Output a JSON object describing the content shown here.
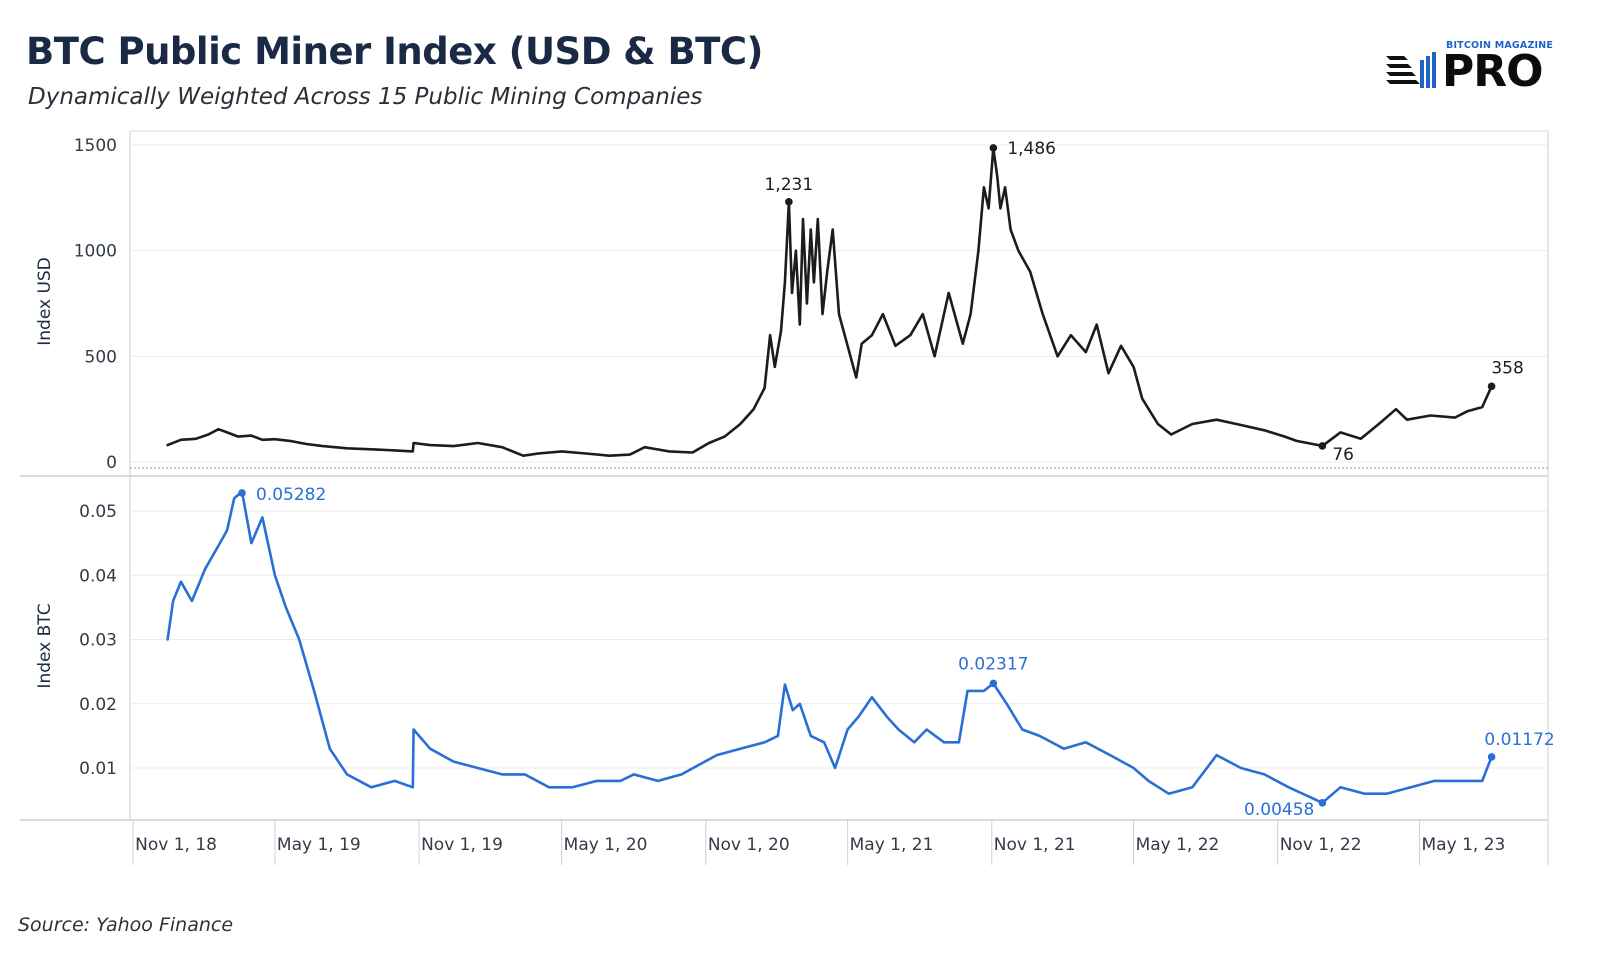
{
  "title": "BTC Public Miner Index (USD & BTC)",
  "subtitle": "Dynamically Weighted Across 15 Public Mining Companies",
  "source": "Source: Yahoo Finance",
  "brand": {
    "top": "BITCOIN MAGAZINE",
    "main": "PRO"
  },
  "colors": {
    "usd_line": "#1c1c1c",
    "btc_line": "#2a6fd6",
    "grid": "#ebebeb",
    "title": "#1b2a44"
  },
  "chart_data": [
    {
      "type": "line",
      "ylabel": "Index USD",
      "ylim": [
        0,
        1500
      ],
      "yticks": [
        0,
        500,
        1000,
        1500
      ],
      "xlim": [
        "2018-10-28",
        "2023-10-12"
      ],
      "xticks": [
        "2018-11-01",
        "2019-05-01",
        "2019-11-01",
        "2020-05-01",
        "2020-11-01",
        "2021-05-01",
        "2021-11-01",
        "2022-05-01",
        "2022-11-01",
        "2023-05-01"
      ],
      "xticklabels": [
        "Nov 1, 18",
        "May 1, 19",
        "Nov 1, 19",
        "May 1, 20",
        "Nov 1, 20",
        "May 1, 21",
        "Nov 1, 21",
        "May 1, 22",
        "Nov 1, 22",
        "May 1, 23"
      ],
      "grid": true,
      "series": [
        {
          "x": [
            "2018-12-15",
            "2019-01-01",
            "2019-01-20",
            "2019-02-05",
            "2019-02-18",
            "2019-03-01",
            "2019-03-15",
            "2019-04-01",
            "2019-04-15",
            "2019-05-01",
            "2019-05-20",
            "2019-06-10",
            "2019-07-01",
            "2019-08-01",
            "2019-09-01",
            "2019-10-01",
            "2019-10-24",
            "2019-10-25",
            "2019-11-15",
            "2019-12-15",
            "2020-01-15",
            "2020-02-15",
            "2020-03-13",
            "2020-04-01",
            "2020-05-01",
            "2020-06-01",
            "2020-07-01",
            "2020-07-27",
            "2020-08-15",
            "2020-09-15",
            "2020-10-15",
            "2020-11-05",
            "2020-11-25",
            "2020-12-15",
            "2021-01-01",
            "2021-01-15",
            "2021-01-22",
            "2021-01-28",
            "2021-02-05",
            "2021-02-10",
            "2021-02-15",
            "2021-02-19",
            "2021-02-24",
            "2021-03-01",
            "2021-03-05",
            "2021-03-10",
            "2021-03-15",
            "2021-03-19",
            "2021-03-24",
            "2021-03-30",
            "2021-04-05",
            "2021-04-12",
            "2021-04-20",
            "2021-05-01",
            "2021-05-12",
            "2021-05-19",
            "2021-06-01",
            "2021-06-15",
            "2021-07-01",
            "2021-07-20",
            "2021-08-05",
            "2021-08-20",
            "2021-09-07",
            "2021-09-25",
            "2021-10-05",
            "2021-10-15",
            "2021-10-22",
            "2021-10-28",
            "2021-11-03",
            "2021-11-08",
            "2021-11-12",
            "2021-11-18",
            "2021-11-25",
            "2021-12-05",
            "2021-12-20",
            "2022-01-05",
            "2022-01-24",
            "2022-02-10",
            "2022-03-01",
            "2022-03-15",
            "2022-03-30",
            "2022-04-15",
            "2022-05-01",
            "2022-05-12",
            "2022-06-01",
            "2022-06-18",
            "2022-07-15",
            "2022-08-15",
            "2022-09-15",
            "2022-10-15",
            "2022-11-10",
            "2022-11-25",
            "2022-12-28",
            "2023-01-20",
            "2023-02-15",
            "2023-03-10",
            "2023-04-01",
            "2023-04-15",
            "2023-05-15",
            "2023-06-15",
            "2023-07-01",
            "2023-07-20",
            "2023-08-01"
          ],
          "values": [
            80,
            105,
            110,
            130,
            155,
            140,
            120,
            125,
            105,
            108,
            100,
            85,
            75,
            65,
            60,
            55,
            50,
            90,
            80,
            75,
            90,
            70,
            30,
            40,
            50,
            40,
            30,
            35,
            70,
            50,
            45,
            90,
            120,
            180,
            250,
            350,
            600,
            450,
            620,
            850,
            1231,
            800,
            1000,
            650,
            1150,
            750,
            1100,
            850,
            1150,
            700,
            900,
            1100,
            700,
            550,
            400,
            560,
            600,
            700,
            550,
            600,
            700,
            500,
            800,
            560,
            700,
            1000,
            1300,
            1200,
            1486,
            1350,
            1200,
            1300,
            1100,
            1000,
            900,
            700,
            500,
            600,
            520,
            650,
            420,
            550,
            450,
            300,
            180,
            130,
            180,
            200,
            175,
            150,
            120,
            100,
            76,
            140,
            110,
            180,
            250,
            200,
            220,
            210,
            240,
            260,
            358
          ]
        }
      ],
      "annotations": [
        {
          "x": "2021-02-15",
          "y": 1231,
          "label": "1,231"
        },
        {
          "x": "2021-11-03",
          "y": 1486,
          "label": "1,486"
        },
        {
          "x": "2022-12-28",
          "y": 76,
          "label": "76"
        },
        {
          "x": "2023-08-01",
          "y": 358,
          "label": "358"
        }
      ]
    },
    {
      "type": "line",
      "ylabel": "Index BTC",
      "ylim": [
        0,
        0.057
      ],
      "yticks": [
        0.01,
        0.02,
        0.03,
        0.04,
        0.05
      ],
      "yticklabels": [
        "0.01",
        "0.02",
        "0.03",
        "0.04",
        "0.05"
      ],
      "xlim": [
        "2018-10-28",
        "2023-10-12"
      ],
      "xticks": [
        "2018-11-01",
        "2019-05-01",
        "2019-11-01",
        "2020-05-01",
        "2020-11-01",
        "2021-05-01",
        "2021-11-01",
        "2022-05-01",
        "2022-11-01",
        "2023-05-01"
      ],
      "xticklabels": [
        "Nov 1, 18",
        "May 1, 19",
        "Nov 1, 19",
        "May 1, 20",
        "Nov 1, 20",
        "May 1, 21",
        "Nov 1, 21",
        "May 1, 22",
        "Nov 1, 22",
        "May 1, 23"
      ],
      "grid": true,
      "series": [
        {
          "x": [
            "2018-12-15",
            "2018-12-22",
            "2019-01-01",
            "2019-01-15",
            "2019-02-01",
            "2019-02-15",
            "2019-03-01",
            "2019-03-10",
            "2019-03-20",
            "2019-04-01",
            "2019-04-15",
            "2019-05-01",
            "2019-05-15",
            "2019-06-01",
            "2019-06-20",
            "2019-07-10",
            "2019-08-01",
            "2019-09-01",
            "2019-10-01",
            "2019-10-24",
            "2019-10-25",
            "2019-11-15",
            "2019-12-15",
            "2020-01-15",
            "2020-02-15",
            "2020-03-15",
            "2020-04-15",
            "2020-05-15",
            "2020-06-15",
            "2020-07-15",
            "2020-08-01",
            "2020-09-01",
            "2020-10-01",
            "2020-11-15",
            "2020-12-15",
            "2021-01-15",
            "2021-02-01",
            "2021-02-10",
            "2021-02-20",
            "2021-03-01",
            "2021-03-15",
            "2021-04-01",
            "2021-04-15",
            "2021-05-01",
            "2021-05-15",
            "2021-06-01",
            "2021-06-20",
            "2021-07-05",
            "2021-07-25",
            "2021-08-10",
            "2021-09-01",
            "2021-09-20",
            "2021-10-01",
            "2021-10-15",
            "2021-10-22",
            "2021-11-03",
            "2021-11-20",
            "2021-12-10",
            "2022-01-01",
            "2022-02-01",
            "2022-03-01",
            "2022-04-01",
            "2022-05-01",
            "2022-05-20",
            "2022-06-15",
            "2022-07-15",
            "2022-08-15",
            "2022-09-15",
            "2022-10-15",
            "2022-11-15",
            "2022-12-28",
            "2023-01-20",
            "2023-02-20",
            "2023-03-20",
            "2023-04-20",
            "2023-05-20",
            "2023-06-20",
            "2023-07-20",
            "2023-08-01"
          ],
          "values": [
            0.03,
            0.036,
            0.039,
            0.036,
            0.041,
            0.044,
            0.047,
            0.052,
            0.053,
            0.045,
            0.049,
            0.04,
            0.035,
            0.03,
            0.022,
            0.013,
            0.009,
            0.007,
            0.008,
            0.007,
            0.016,
            0.013,
            0.011,
            0.01,
            0.009,
            0.009,
            0.007,
            0.007,
            0.008,
            0.008,
            0.009,
            0.008,
            0.009,
            0.012,
            0.013,
            0.014,
            0.015,
            0.023,
            0.019,
            0.02,
            0.015,
            0.014,
            0.01,
            0.016,
            0.018,
            0.021,
            0.018,
            0.016,
            0.014,
            0.016,
            0.014,
            0.014,
            0.022,
            0.022,
            0.022,
            0.02317,
            0.02,
            0.016,
            0.015,
            0.013,
            0.014,
            0.012,
            0.01,
            0.008,
            0.006,
            0.007,
            0.012,
            0.01,
            0.009,
            0.007,
            0.00458,
            0.007,
            0.006,
            0.006,
            0.007,
            0.008,
            0.008,
            0.008,
            0.01172
          ]
        }
      ],
      "annotations": [
        {
          "x": "2019-03-20",
          "y": 0.05282,
          "label": "0.05282"
        },
        {
          "x": "2021-11-03",
          "y": 0.02317,
          "label": "0.02317"
        },
        {
          "x": "2022-12-28",
          "y": 0.00458,
          "label": "0.00458"
        },
        {
          "x": "2023-08-01",
          "y": 0.01172,
          "label": "0.01172"
        }
      ]
    }
  ]
}
